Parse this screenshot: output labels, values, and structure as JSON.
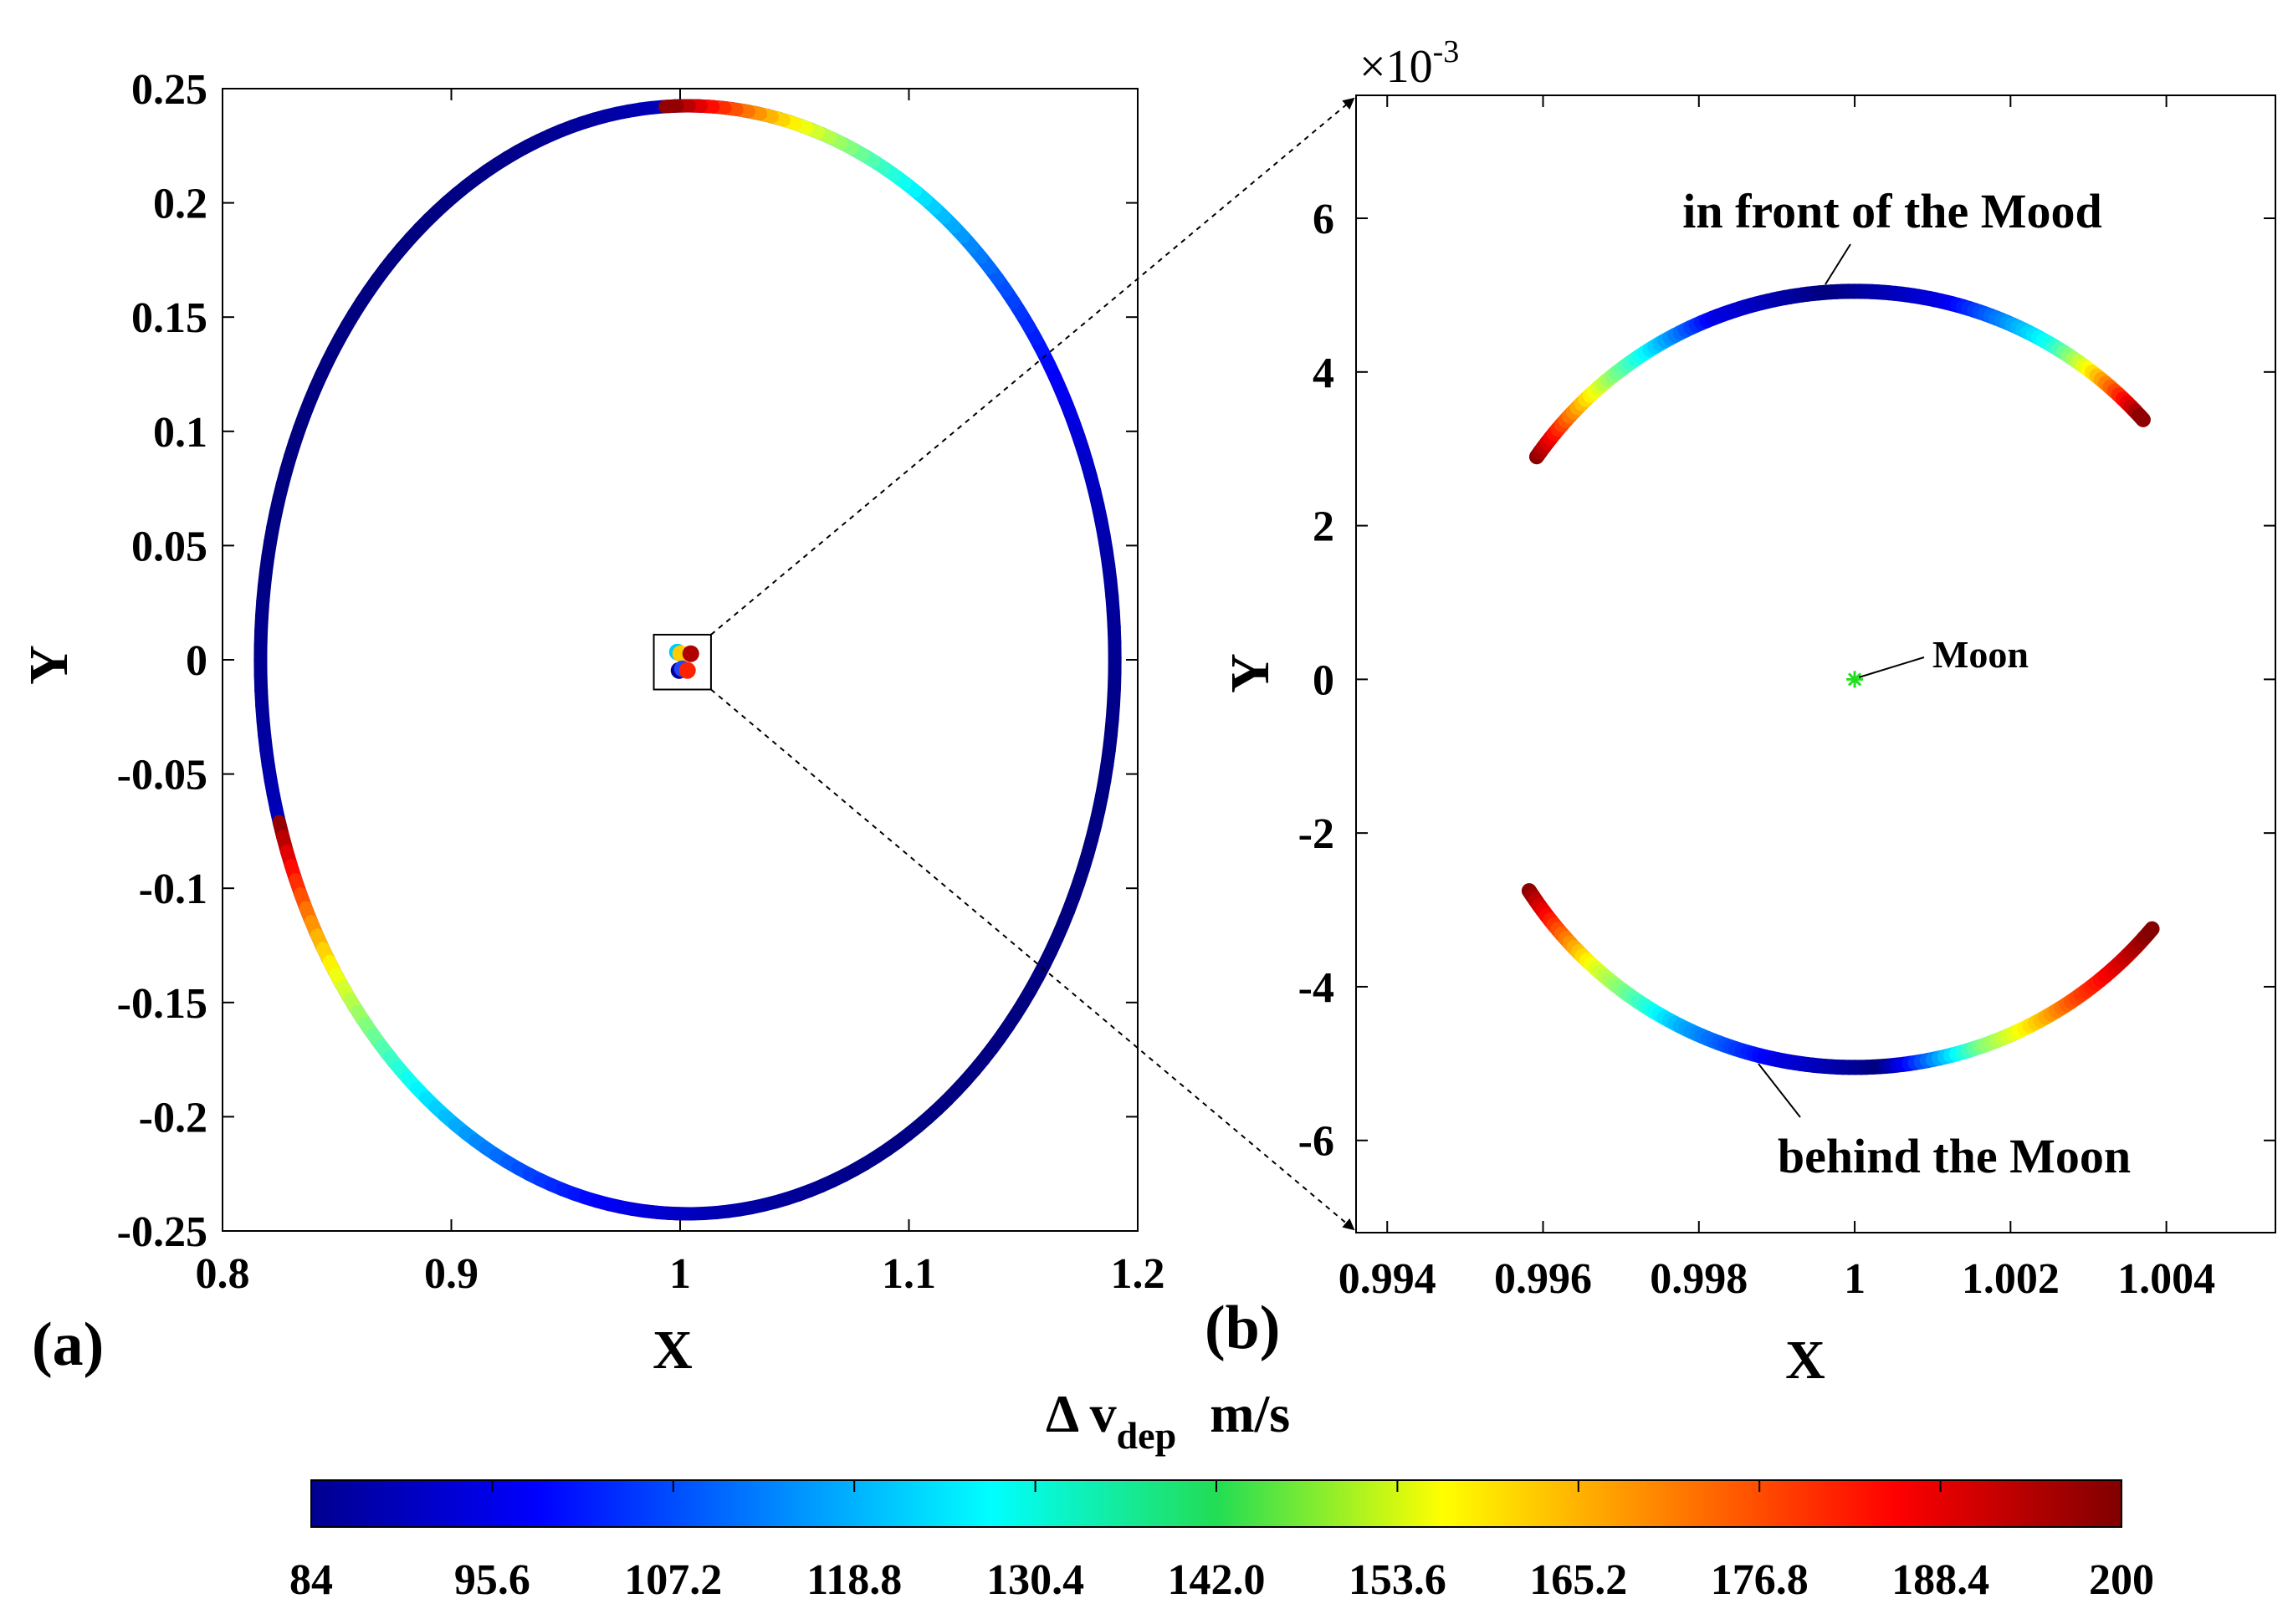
{
  "chart_data": [
    {
      "id": "a",
      "type": "scatter",
      "panel_label": "(a)",
      "xlabel": "X",
      "ylabel": "Y",
      "xlim": [
        0.8,
        1.2
      ],
      "ylim": [
        -0.25,
        0.25
      ],
      "xticks": [
        "0.8",
        "0.9",
        "1",
        "1.1",
        "1.2"
      ],
      "yticks": [
        "0.25",
        "0.2",
        "0.15",
        "0.1",
        "0.05",
        "0",
        "-0.05",
        "-0.1",
        "-0.15",
        "-0.2",
        "-0.25"
      ],
      "orbit": {
        "center": [
          1.0033,
          0.0
        ],
        "semi_axis_x": 0.1867,
        "semi_axis_y": 0.2425
      },
      "colored_arcs": [
        {
          "from_deg": 22,
          "to_deg": 270,
          "dv_start": 200,
          "dv_min": 84,
          "dv_end": 200
        },
        {
          "from_deg": 197,
          "to_deg": 453,
          "dv_start": 200,
          "dv_min": 84,
          "dv_end": 200
        }
      ],
      "zoom_box": {
        "x": [
          0.9885,
          1.0135
        ],
        "y": [
          -0.013,
          0.011
        ]
      }
    },
    {
      "id": "b",
      "type": "scatter",
      "panel_label": "(b)",
      "xlabel": "X",
      "ylabel": "Y",
      "y_exponent": "×10-3",
      "xlim": [
        0.9936,
        1.0054
      ],
      "ylim": [
        -7.2,
        7.6
      ],
      "xticks": [
        "0.994",
        "0.996",
        "0.998",
        "1",
        "1.002",
        "1.004"
      ],
      "yticks": [
        "6",
        "4",
        "2",
        "0",
        "-2",
        "-4",
        "-6"
      ],
      "arcs": [
        {
          "name": "in front of the Mood",
          "points_xy": [
            [
              0.9971,
              4.15
            ],
            [
              0.9985,
              4.75
            ],
            [
              1.0,
              5.05
            ],
            [
              1.0015,
              4.8
            ],
            [
              1.0035,
              3.6
            ]
          ],
          "dv_values": [
            200,
            142,
            95.6,
            84,
            95.6,
            130.4,
            200
          ]
        },
        {
          "name": "behind the Moon",
          "points_xy": [
            [
              0.9965,
              -3.6
            ],
            [
              0.9985,
              -4.75
            ],
            [
              1.0,
              -5.05
            ],
            [
              1.0017,
              -4.75
            ]
          ],
          "dv_values": [
            200,
            153.6,
            118.8,
            95.6,
            84,
            142,
            176.8,
            200
          ]
        }
      ],
      "moon": {
        "x": 1.0,
        "y": 0.0
      },
      "annotations": [
        "in front of the Mood",
        "Moon",
        "behind the Moon"
      ]
    }
  ],
  "colorbar": {
    "title": "Δ v",
    "subscript": "dep",
    "unit": "m/s",
    "min": 84,
    "max": 200,
    "colormap": "jet",
    "ticks": [
      "84",
      "95.6",
      "107.2",
      "118.8",
      "130.4",
      "142.0",
      "153.6",
      "165.2",
      "176.8",
      "188.4",
      "200"
    ]
  },
  "colors": {
    "orbit_line": "#222222",
    "moon_marker": "#22dd22",
    "frame": "#000000"
  }
}
